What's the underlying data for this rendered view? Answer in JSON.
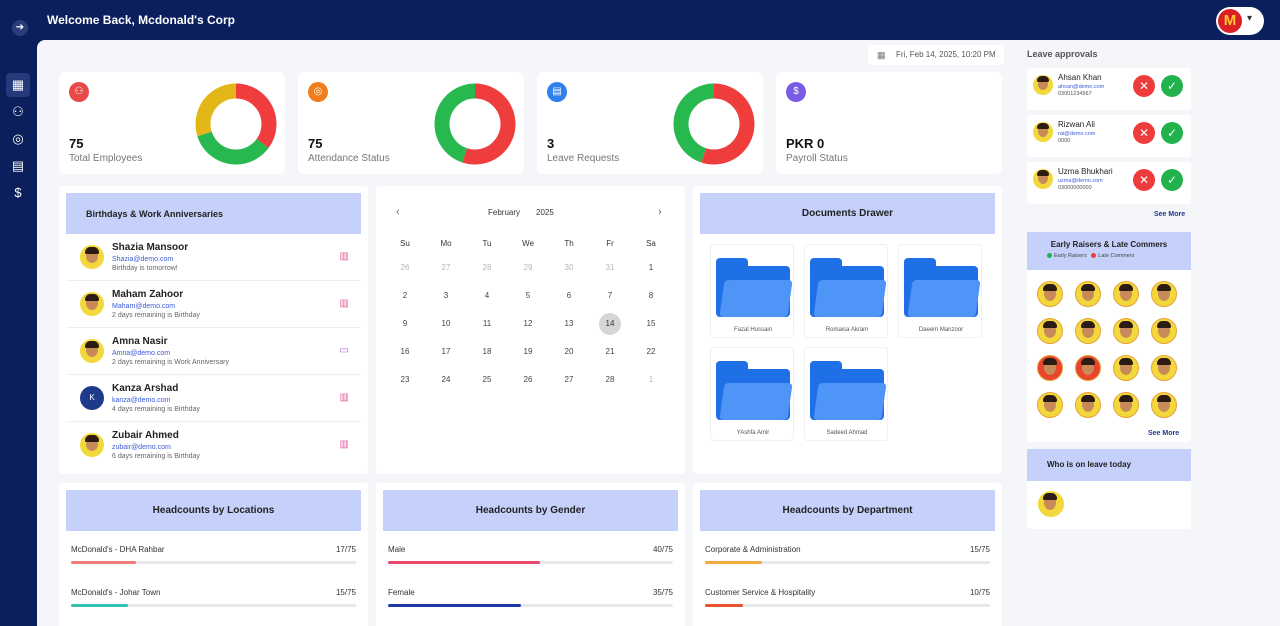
{
  "header": {
    "welcome": "Welcome Back, Mcdonald's Corp",
    "logo_letter": "M",
    "collapse_icon": "arrow-right-icon"
  },
  "sidebar": {
    "items": [
      {
        "icon": "dashboard-icon",
        "glyph": "▦"
      },
      {
        "icon": "users-icon",
        "glyph": "👥"
      },
      {
        "icon": "fingerprint-icon",
        "glyph": "◎"
      },
      {
        "icon": "building-icon",
        "glyph": "▤"
      },
      {
        "icon": "dollar-icon",
        "glyph": "$"
      }
    ]
  },
  "date_chip": "Fri, Feb 14, 2025, 10:20 PM",
  "stats": [
    {
      "value": "75",
      "label": "Total Employees",
      "icon_color": "#e84a4a",
      "donut": [
        {
          "value": 0.35,
          "color": "#ef3c3c"
        },
        {
          "value": 0.35,
          "color": "#27b84f"
        },
        {
          "value": 0.3,
          "color": "#e3b717"
        }
      ]
    },
    {
      "value": "75",
      "label": "Attendance Status",
      "icon_color": "#f07d1e",
      "donut": [
        {
          "value": 0.55,
          "color": "#ef3c3c"
        },
        {
          "value": 0.45,
          "color": "#27b84f"
        }
      ]
    },
    {
      "value": "3",
      "label": "Leave Requests",
      "icon_color": "#2f80ed",
      "donut": [
        {
          "value": 0.55,
          "color": "#ef3c3c"
        },
        {
          "value": 0.45,
          "color": "#27b84f"
        }
      ]
    },
    {
      "value": "PKR 0",
      "label": "Payroll Status",
      "icon_color": "#7a5be6",
      "donut": []
    }
  ],
  "birthdays": {
    "title": "Birthdays & Work Anniversaries",
    "items": [
      {
        "name": "Shazia Mansoor",
        "email": "Shazia@demo.com",
        "note": "Birthday is tomorrow!",
        "type": "cake"
      },
      {
        "name": "Maham Zahoor",
        "email": "Maham@demo.com",
        "note": "2 days remaining is Birthday",
        "type": "cake"
      },
      {
        "name": "Amna Nasir",
        "email": "Amna@demo.com",
        "note": "2 days remaining is Work Anniversary",
        "type": "anniv"
      },
      {
        "name": "Kanza Arshad",
        "email": "kanza@demo.com",
        "note": "4 days remaining is Birthday",
        "type": "cake",
        "initial": "K"
      },
      {
        "name": "Zubair Ahmed",
        "email": "zubair@demo.com",
        "note": "6 days remaining is Birthday",
        "type": "cake"
      }
    ]
  },
  "calendar": {
    "month": "February",
    "year": "2025",
    "weekdays": [
      "Su",
      "Mo",
      "Tu",
      "We",
      "Th",
      "Fr",
      "Sa"
    ],
    "weeks": [
      [
        "26",
        "27",
        "28",
        "29",
        "30",
        "31",
        "1"
      ],
      [
        "2",
        "3",
        "4",
        "5",
        "6",
        "7",
        "8"
      ],
      [
        "9",
        "10",
        "11",
        "12",
        "13",
        "14",
        "15"
      ],
      [
        "16",
        "17",
        "18",
        "19",
        "20",
        "21",
        "22"
      ],
      [
        "23",
        "24",
        "25",
        "26",
        "27",
        "28",
        "1"
      ]
    ],
    "today": "14"
  },
  "documents": {
    "title": "Documents Drawer",
    "items": [
      "Fazal Hussain",
      "Romaisa Akram",
      "Daeem Manzoor",
      "YAshfa Amir",
      "Sadeed Ahmad"
    ]
  },
  "headcount_locations": {
    "title": "Headcounts by Locations",
    "rows": [
      {
        "label": "McDonald's - DHA Rahbar",
        "value": "17/75",
        "fraction": 0.227,
        "color": "#f07b7b"
      },
      {
        "label": "McDonald's - Johar Town",
        "value": "15/75",
        "fraction": 0.2,
        "color": "#33c2b1"
      }
    ]
  },
  "headcount_gender": {
    "title": "Headcounts by Gender",
    "rows": [
      {
        "label": "Male",
        "value": "40/75",
        "fraction": 0.533,
        "color": "#ea4a6a"
      },
      {
        "label": "Female",
        "value": "35/75",
        "fraction": 0.467,
        "color": "#1f3aa8"
      }
    ]
  },
  "headcount_department": {
    "title": "Headcounts by Department",
    "rows": [
      {
        "label": "Corporate & Administration",
        "value": "15/75",
        "fraction": 0.2,
        "color": "#f2a93b"
      },
      {
        "label": "Customer Service & Hospitality",
        "value": "10/75",
        "fraction": 0.133,
        "color": "#e8532b"
      }
    ]
  },
  "leave_approvals": {
    "title": "Leave approvals",
    "see_more": "See More",
    "items": [
      {
        "name": "Ahsan Khan",
        "email": "ahsan@demo.com",
        "phone": "03001234567"
      },
      {
        "name": "Rizwan Ali",
        "email": "rai@demo.com",
        "phone": "0000"
      },
      {
        "name": "Uzma Bhukhari",
        "email": "uzma@demo.com",
        "phone": "03000000000"
      }
    ]
  },
  "early_risers": {
    "title": "Early Raisers & Late Commers",
    "legend_early": "Early Raisers",
    "legend_late": "Late Commers",
    "see_more": "See More",
    "count": 16
  },
  "who_on_leave": {
    "title": "Who is on leave today"
  }
}
